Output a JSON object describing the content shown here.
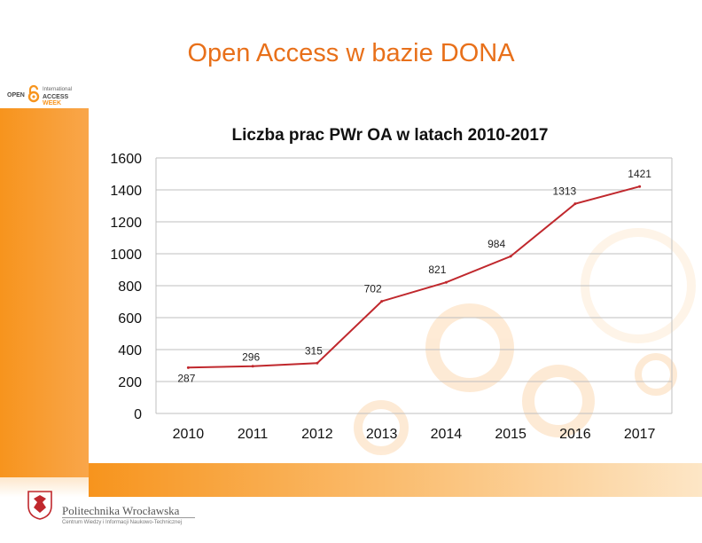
{
  "slide": {
    "title": "Open Access w bazie DONA",
    "oa_logo": {
      "open": "OPEN",
      "international": "International",
      "access": "ACCESS",
      "week": "WEEK"
    },
    "footer": {
      "name": "Politechnika Wrocławska",
      "subtitle": "Centrum Wiedzy i Informacji Naukowo-Technicznej"
    }
  },
  "colors": {
    "accent": "#f7941d",
    "title": "#e8701a",
    "line": "#c0282d",
    "grid": "#bfbfbf"
  },
  "chart_data": {
    "type": "line",
    "title": "Liczba prac PWr OA w latach 2010-2017",
    "categories": [
      "2010",
      "2011",
      "2012",
      "2013",
      "2014",
      "2015",
      "2016",
      "2017"
    ],
    "series": [
      {
        "values": [
          287,
          296,
          315,
          702,
          821,
          984,
          1313,
          1421
        ]
      }
    ],
    "data_labels": [
      "287",
      "296",
      "315",
      "702",
      "821",
      "984",
      "1313",
      "1421"
    ],
    "ylim": [
      0,
      1600
    ],
    "yticks": [
      0,
      200,
      400,
      600,
      800,
      1000,
      1200,
      1400,
      1600
    ],
    "grid": true,
    "legend": "none"
  }
}
